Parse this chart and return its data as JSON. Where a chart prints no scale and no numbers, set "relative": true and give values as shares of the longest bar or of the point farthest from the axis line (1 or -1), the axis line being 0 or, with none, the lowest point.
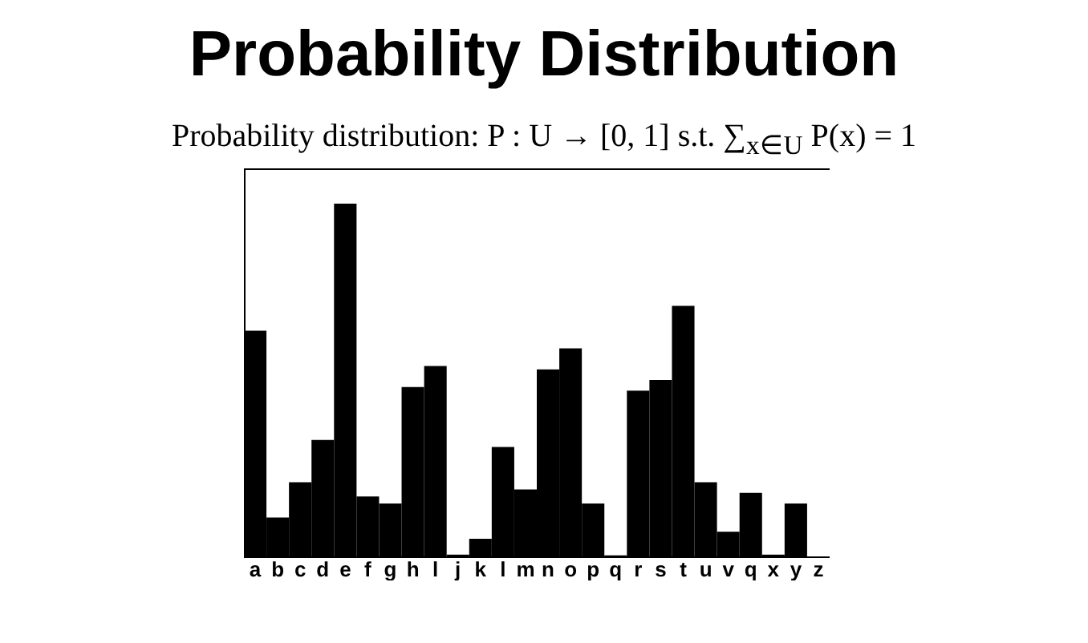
{
  "chart_data": {
    "type": "bar",
    "title": "Probability Distribution",
    "subtitle": "Probability distribution: P : U → [0, 1] s.t. ∑$_{x∈U}$ P(x) = 1",
    "relative": true,
    "color": "#000000",
    "categories": [
      "a",
      "b",
      "c",
      "d",
      "e",
      "f",
      "g",
      "h",
      "l",
      "j",
      "k",
      "l",
      "m",
      "n",
      "o",
      "p",
      "q",
      "r",
      "s",
      "t",
      "u",
      "v",
      "q",
      "x",
      "y",
      "z"
    ],
    "values": [
      0.64,
      0.11,
      0.21,
      0.33,
      1,
      0.17,
      0.15,
      0.48,
      0.54,
      0.005,
      0.05,
      0.31,
      0.19,
      0.53,
      0.59,
      0.15,
      0.003,
      0.47,
      0.5,
      0.71,
      0.21,
      0.07,
      0.18,
      0.005,
      0.15,
      0
    ]
  }
}
